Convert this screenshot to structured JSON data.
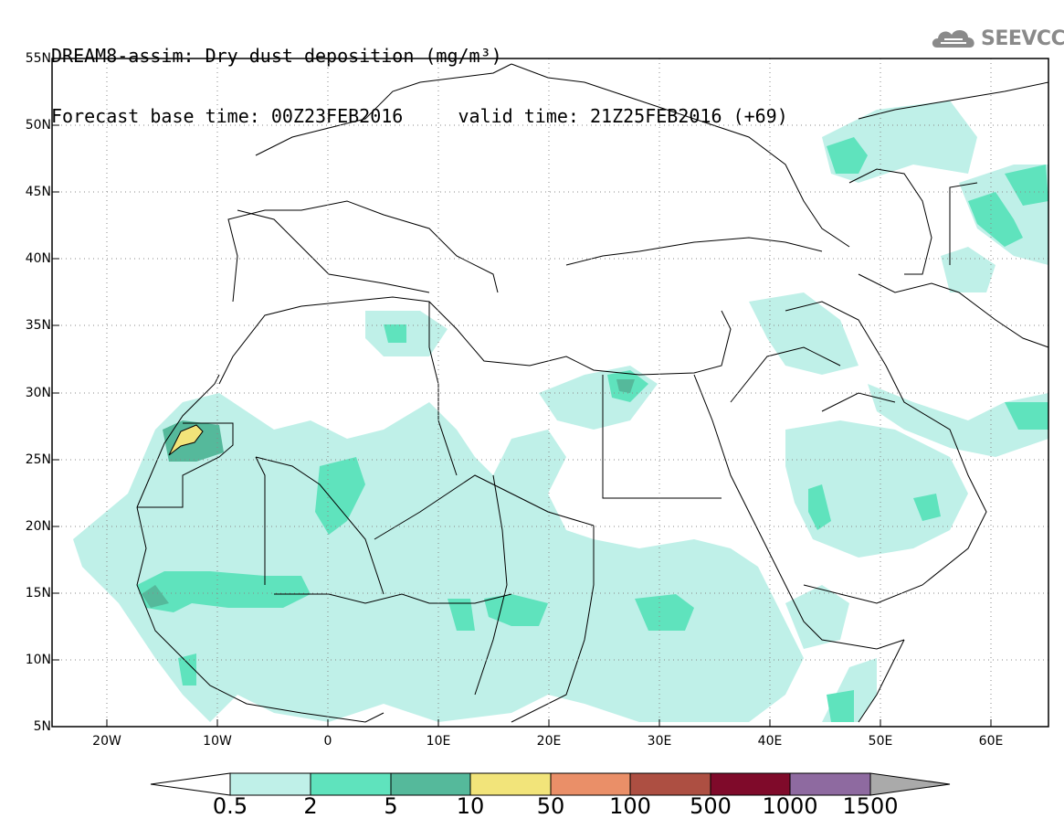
{
  "title": {
    "line1": "DREAM8-assim: Dry dust deposition (mg/m³)",
    "line2": "Forecast base time: 00Z23FEB2016     valid time: 21Z25FEB2016 (+69)"
  },
  "logo": {
    "text": "SEEVCCC",
    "icon": "cloud-icon"
  },
  "map": {
    "lat_labels": [
      "55N",
      "50N",
      "45N",
      "40N",
      "35N",
      "30N",
      "25N",
      "20N",
      "15N",
      "10N",
      "5N"
    ],
    "lon_labels": [
      "20W",
      "10W",
      "0",
      "10E",
      "20E",
      "30E",
      "40E",
      "50E",
      "60E"
    ],
    "lat_range": [
      5,
      55
    ],
    "lon_range": [
      -25,
      65
    ],
    "grid": "dotted"
  },
  "colorbar": {
    "labels": [
      "0.5",
      "2",
      "5",
      "10",
      "50",
      "100",
      "500",
      "1000",
      "1500"
    ],
    "colors": [
      "#bff0e8",
      "#5fe3bd",
      "#55b99b",
      "#f2e47a",
      "#ea8f68",
      "#ad4f42",
      "#7f0a2a",
      "#8e6aa0"
    ],
    "below_color": "#ffffff",
    "above_color": "#aaaaaa"
  },
  "legend_colors": {
    "light": "#bff0e8",
    "mid": "#5fe3bd",
    "dark": "#55b99b",
    "yellow": "#f2e47a"
  }
}
